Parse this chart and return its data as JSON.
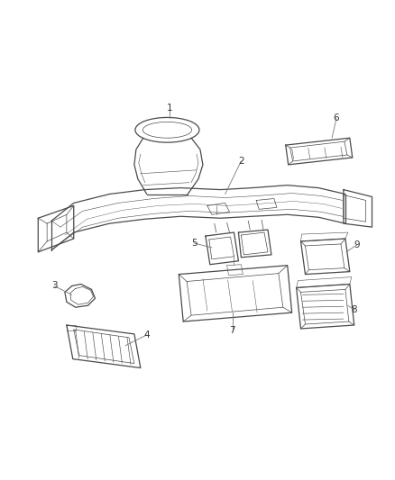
{
  "bg_color": "#ffffff",
  "line_color": "#4a4a4a",
  "lw_main": 0.9,
  "lw_thin": 0.5,
  "fig_width": 4.38,
  "fig_height": 5.33,
  "dpi": 100
}
